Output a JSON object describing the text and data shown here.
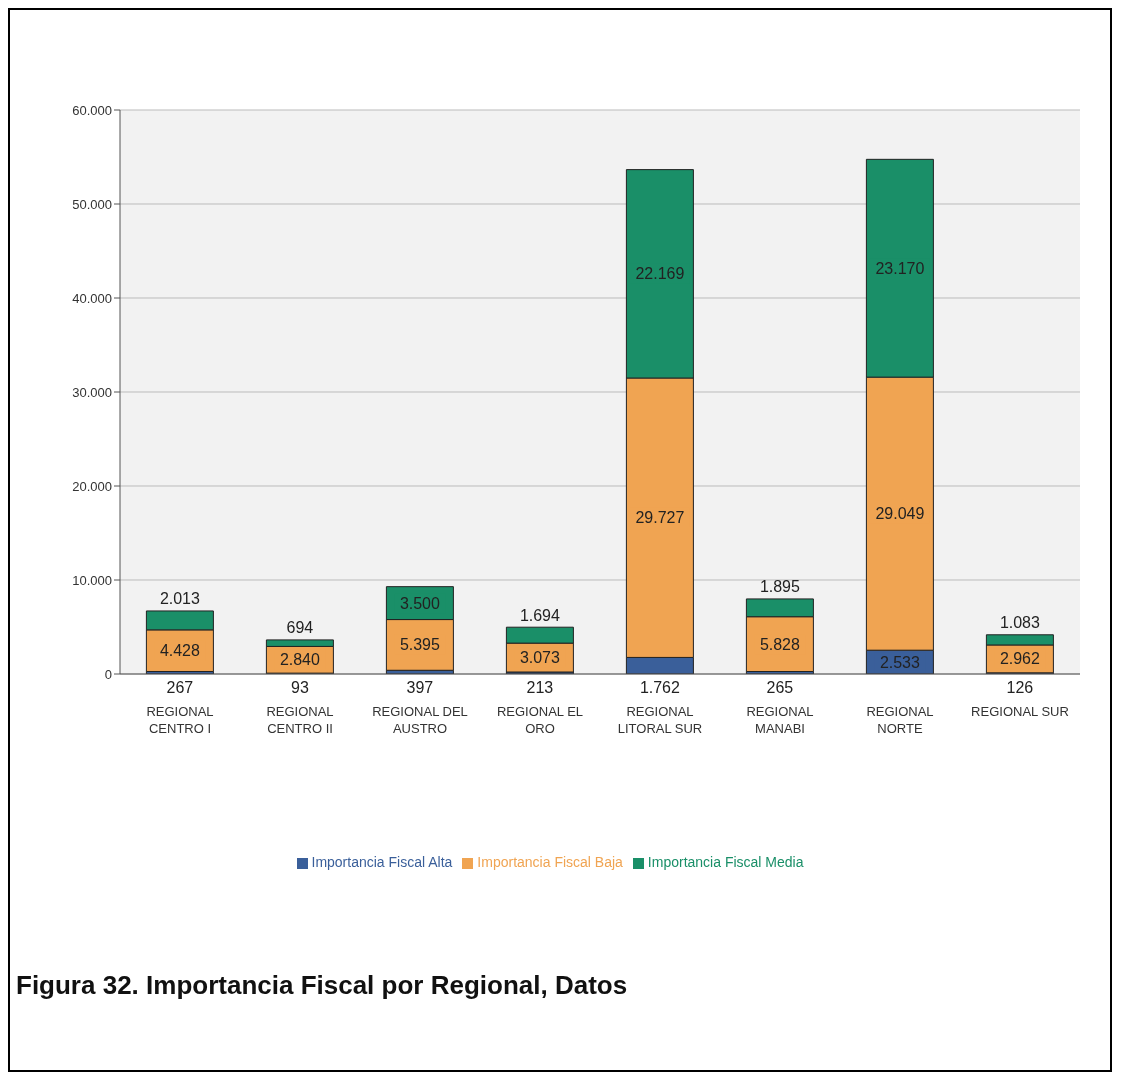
{
  "chart_data": {
    "type": "bar",
    "title": "Figura 32. Importancia Fiscal por Regional, Datos",
    "categories": [
      "REGIONAL CENTRO I",
      "REGIONAL CENTRO II",
      "REGIONAL DEL AUSTRO",
      "REGIONAL EL ORO",
      "REGIONAL LITORAL SUR",
      "REGIONAL MANABI",
      "REGIONAL NORTE",
      "REGIONAL SUR"
    ],
    "stacked": true,
    "series": [
      {
        "name": "Importancia Fiscal Alta",
        "color": "#3a5f9a",
        "values": [
          267,
          93,
          397,
          213,
          1762,
          265,
          2533,
          126
        ],
        "value_labels": [
          "267",
          "93",
          "397",
          "213",
          "1.762",
          "265",
          "2.533",
          "126"
        ]
      },
      {
        "name": "Importancia Fiscal Baja",
        "color": "#f0a452",
        "values": [
          4428,
          2840,
          5395,
          3073,
          29727,
          5828,
          29049,
          2962
        ],
        "value_labels": [
          "4.428",
          "2.840",
          "5.395",
          "3.073",
          "29.727",
          "5.828",
          "29.049",
          "2.962"
        ]
      },
      {
        "name": "Importancia Fiscal Media",
        "color": "#1a8f68",
        "values": [
          2013,
          694,
          3500,
          1694,
          22169,
          1895,
          23170,
          1083
        ],
        "value_labels": [
          "2.013",
          "694",
          "3.500",
          "1.694",
          "22.169",
          "1.895",
          "23.170",
          "1.083"
        ]
      }
    ],
    "ylim": [
      0,
      60000
    ],
    "yticks": [
      {
        "value": 0,
        "label": "0"
      },
      {
        "value": 10000,
        "label": "10.000"
      },
      {
        "value": 20000,
        "label": "20.000"
      },
      {
        "value": 30000,
        "label": "30.000"
      },
      {
        "value": 40000,
        "label": "40.000"
      },
      {
        "value": 50000,
        "label": "50.000"
      },
      {
        "value": 60000,
        "label": "60.000"
      }
    ],
    "grid": "y",
    "legend": "bottom"
  }
}
